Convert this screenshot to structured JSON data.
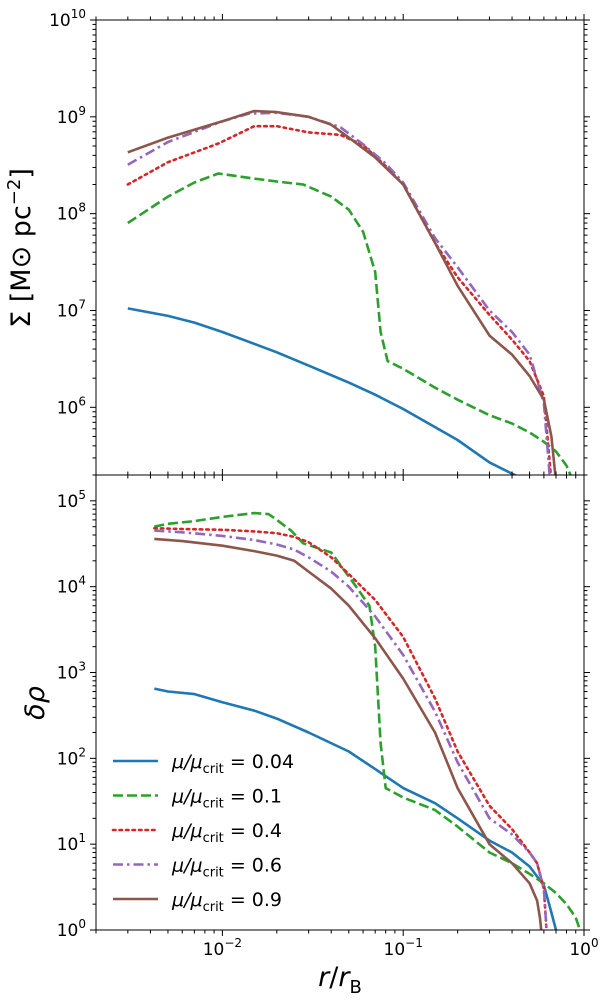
{
  "chart_data": {
    "type": "line",
    "x_axis": {
      "label": "r/r_B",
      "scale": "log",
      "xlim": [
        0.002,
        1.0
      ],
      "tick_labels": [
        "10^{-2}",
        "10^{-1}",
        "10^{0}"
      ]
    },
    "legend": {
      "placement": "lower-left of bottom panel",
      "entries": [
        {
          "prefix": "μ/μ",
          "sub": "crit",
          "suffix": " = 0.04"
        },
        {
          "prefix": "μ/μ",
          "sub": "crit",
          "suffix": " = 0.1"
        },
        {
          "prefix": "μ/μ",
          "sub": "crit",
          "suffix": " = 0.4"
        },
        {
          "prefix": "μ/μ",
          "sub": "crit",
          "suffix": " = 0.6"
        },
        {
          "prefix": "μ/μ",
          "sub": "crit",
          "suffix": " = 0.9"
        }
      ]
    },
    "series_styles": [
      {
        "name": "μ/μcrit = 0.04",
        "color": "#1f77b4",
        "dash": "solid"
      },
      {
        "name": "μ/μcrit = 0.1",
        "color": "#2ca02c",
        "dash": "dashed"
      },
      {
        "name": "μ/μcrit = 0.4",
        "color": "#d62728",
        "dash": "dotted"
      },
      {
        "name": "μ/μcrit = 0.6",
        "color": "#9467bd",
        "dash": "dashdot"
      },
      {
        "name": "μ/μcrit = 0.9",
        "color": "#8c564b",
        "dash": "solid"
      }
    ],
    "panels": [
      {
        "id": "surface-density",
        "ylabel": "Σ [M⊙ pc^-2]",
        "yscale": "log",
        "ylim": [
          200000,
          10000000000
        ],
        "tick_labels": [
          "10^{6}",
          "10^{7}",
          "10^{8}",
          "10^{9}",
          "10^{10}"
        ],
        "series": [
          {
            "name": "μ/μcrit = 0.04",
            "x": [
              0.003,
              0.005,
              0.007,
              0.01,
              0.02,
              0.03,
              0.05,
              0.07,
              0.1,
              0.2,
              0.3,
              0.45
            ],
            "y": [
              10500000,
              8800000,
              7500000,
              6000000,
              3700000,
              2700000,
              1800000,
              1350000,
              960000,
              460000,
              270000,
              185000
            ]
          },
          {
            "name": "μ/μcrit = 0.1",
            "x": [
              0.003,
              0.005,
              0.007,
              0.0095,
              0.015,
              0.02,
              0.028,
              0.04,
              0.05,
              0.06,
              0.07,
              0.075,
              0.082,
              0.1,
              0.15,
              0.2,
              0.3,
              0.4,
              0.5,
              0.6,
              0.7,
              0.8,
              0.9
            ],
            "y": [
              80000000,
              150000000,
              210000000,
              260000000,
              230000000,
              215000000,
              200000000,
              150000000,
              110000000,
              65000000,
              25000000,
              6000000,
              3000000,
              2500000,
              1600000,
              1200000,
              830000,
              680000,
              550000,
              440000,
              350000,
              250000,
              150000
            ]
          },
          {
            "name": "μ/μcrit = 0.4",
            "x": [
              0.003,
              0.005,
              0.0095,
              0.015,
              0.02,
              0.03,
              0.045,
              0.06,
              0.08,
              0.1,
              0.15,
              0.2,
              0.3,
              0.4,
              0.5,
              0.6,
              0.66
            ],
            "y": [
              200000000,
              340000000,
              530000000,
              800000000,
              800000000,
              690000000,
              650000000,
              510000000,
              310000000,
              200000000,
              50000000,
              22000000,
              9000000,
              5000000,
              3000000,
              1300000,
              170000
            ]
          },
          {
            "name": "μ/μcrit = 0.6",
            "x": [
              0.003,
              0.005,
              0.01,
              0.014,
              0.02,
              0.03,
              0.045,
              0.06,
              0.08,
              0.1,
              0.15,
              0.2,
              0.3,
              0.4,
              0.5,
              0.6,
              0.65
            ],
            "y": [
              320000000,
              550000000,
              900000000,
              1080000000,
              1100000000,
              1000000000,
              780000000,
              520000000,
              330000000,
              210000000,
              56000000,
              28000000,
              10000000,
              6000000,
              3500000,
              1100000,
              170000
            ]
          },
          {
            "name": "μ/μcrit = 0.9",
            "x": [
              0.003,
              0.005,
              0.01,
              0.015,
              0.02,
              0.03,
              0.04,
              0.05,
              0.07,
              0.1,
              0.15,
              0.2,
              0.3,
              0.4,
              0.5,
              0.6,
              0.66,
              0.7
            ],
            "y": [
              430000000,
              610000000,
              900000000,
              1150000000,
              1120000000,
              1000000000,
              830000000,
              610000000,
              380000000,
              200000000,
              50000000,
              18000000,
              5500000,
              3500000,
              2100000,
              1200000,
              500000,
              170000
            ]
          }
        ]
      },
      {
        "id": "density-contrast",
        "ylabel": "δρ",
        "yscale": "log",
        "ylim": [
          1,
          200000
        ],
        "tick_labels": [
          "10^{0}",
          "10^{1}",
          "10^{2}",
          "10^{3}",
          "10^{4}",
          "10^{5}"
        ],
        "series": [
          {
            "name": "μ/μcrit = 0.04",
            "x": [
              0.0042,
              0.005,
              0.007,
              0.01,
              0.015,
              0.02,
              0.03,
              0.05,
              0.07,
              0.1,
              0.15,
              0.2,
              0.3,
              0.4,
              0.5,
              0.6,
              0.65,
              0.7
            ],
            "y": [
              650,
              600,
              560,
              450,
              360,
              290,
              200,
              120,
              75,
              45,
              30,
              20,
              11,
              8,
              5.5,
              3.3,
              1.8,
              1.0
            ]
          },
          {
            "name": "μ/μcrit = 0.1",
            "x": [
              0.0042,
              0.005,
              0.007,
              0.01,
              0.015,
              0.018,
              0.02,
              0.024,
              0.028,
              0.04,
              0.055,
              0.065,
              0.07,
              0.075,
              0.08,
              0.1,
              0.15,
              0.2,
              0.3,
              0.4,
              0.5,
              0.6,
              0.7,
              0.8,
              0.9,
              0.95
            ],
            "y": [
              50000,
              54000,
              58000,
              65000,
              72000,
              70000,
              60000,
              45000,
              32000,
              25000,
              10000,
              6000,
              2000,
              150,
              45,
              35,
              25,
              16,
              8,
              6,
              4.5,
              3.5,
              2.7,
              2.0,
              1.4,
              1.0
            ]
          },
          {
            "name": "μ/μcrit = 0.4",
            "x": [
              0.0042,
              0.006,
              0.01,
              0.015,
              0.02,
              0.025,
              0.03,
              0.04,
              0.05,
              0.07,
              0.1,
              0.15,
              0.2,
              0.3,
              0.4,
              0.5,
              0.55,
              0.6,
              0.62
            ],
            "y": [
              48000,
              47000,
              46000,
              44000,
              42000,
              38000,
              33000,
              22000,
              14000,
              7000,
              2600,
              500,
              120,
              28,
              15,
              8,
              6,
              3,
              1.0
            ]
          },
          {
            "name": "μ/μcrit = 0.6",
            "x": [
              0.0042,
              0.006,
              0.01,
              0.015,
              0.02,
              0.025,
              0.03,
              0.04,
              0.05,
              0.07,
              0.1,
              0.15,
              0.2,
              0.3,
              0.4,
              0.5,
              0.55,
              0.6,
              0.62
            ],
            "y": [
              45000,
              43000,
              39000,
              35000,
              31000,
              27000,
              22000,
              15000,
              10000,
              4500,
              1600,
              350,
              90,
              20,
              13,
              8,
              6,
              3,
              1.0
            ]
          },
          {
            "name": "μ/μcrit = 0.9",
            "x": [
              0.0042,
              0.006,
              0.01,
              0.015,
              0.02,
              0.025,
              0.03,
              0.04,
              0.05,
              0.07,
              0.1,
              0.15,
              0.2,
              0.3,
              0.4,
              0.5,
              0.55,
              0.57,
              0.58
            ],
            "y": [
              36000,
              34000,
              30000,
              26000,
              23000,
              20000,
              15000,
              9500,
              6000,
              2500,
              850,
              200,
              45,
              10,
              6,
              3.5,
              2.2,
              1.4,
              1.0
            ]
          }
        ]
      }
    ]
  }
}
